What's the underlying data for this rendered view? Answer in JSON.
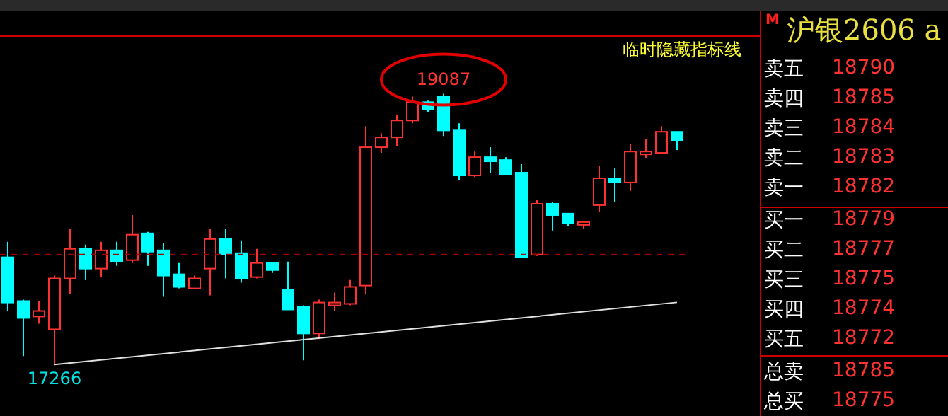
{
  "chart_data": {
    "type": "candlestick",
    "title": "沪银2606 a",
    "categories": [
      null,
      null,
      null,
      null,
      null,
      null,
      null,
      null,
      null,
      null,
      null,
      null,
      null,
      null,
      null,
      null,
      null,
      null,
      null,
      null,
      null,
      null,
      null,
      null,
      null,
      null,
      null,
      null,
      null,
      null,
      null,
      null,
      null,
      null,
      null,
      null,
      null,
      null,
      null,
      null,
      null,
      null,
      null,
      null
    ],
    "ohlc": [
      [
        17987,
        18091,
        17626,
        17683
      ],
      [
        17693,
        17702,
        17323,
        17579
      ],
      [
        17589,
        17693,
        17541,
        17626
      ],
      [
        17503,
        17864,
        17266,
        17845
      ],
      [
        17845,
        18177,
        17740,
        18044
      ],
      [
        18044,
        18072,
        17835,
        17911
      ],
      [
        17911,
        18091,
        17854,
        18034
      ],
      [
        18034,
        18091,
        17930,
        17958
      ],
      [
        17968,
        18271,
        17949,
        18139
      ],
      [
        18148,
        18158,
        17930,
        18025
      ],
      [
        18034,
        18082,
        17721,
        17864
      ],
      [
        17873,
        17949,
        17778,
        17788
      ],
      [
        17778,
        17864,
        17778,
        17845
      ],
      [
        17911,
        18177,
        17731,
        18110
      ],
      [
        18110,
        18177,
        17845,
        18006
      ],
      [
        18015,
        18101,
        17816,
        17845
      ],
      [
        17854,
        18044,
        17845,
        17949
      ],
      [
        17949,
        17949,
        17882,
        17901
      ],
      [
        17769,
        17958,
        17636,
        17636
      ],
      [
        17655,
        17664,
        17294,
        17475
      ],
      [
        17475,
        17702,
        17437,
        17683
      ],
      [
        17664,
        17750,
        17626,
        17683
      ],
      [
        17674,
        17835,
        17664,
        17788
      ],
      [
        17797,
        18869,
        17740,
        18727
      ],
      [
        18727,
        18821,
        18689,
        18793
      ],
      [
        18793,
        18945,
        18736,
        18907
      ],
      [
        18907,
        19068,
        18888,
        19030
      ],
      [
        19030,
        19040,
        18964,
        18983
      ],
      [
        19068,
        19087,
        18802,
        18840
      ],
      [
        18840,
        18888,
        18508,
        18537
      ],
      [
        18537,
        18698,
        18527,
        18660
      ],
      [
        18660,
        18727,
        18556,
        18632
      ],
      [
        18641,
        18660,
        18537,
        18546
      ],
      [
        18556,
        18613,
        17987,
        17987
      ],
      [
        18006,
        18376,
        17996,
        18347
      ],
      [
        18347,
        18357,
        18167,
        18271
      ],
      [
        18281,
        18281,
        18196,
        18214
      ],
      [
        18205,
        18233,
        18177,
        18224
      ],
      [
        18338,
        18603,
        18290,
        18518
      ],
      [
        18518,
        18584,
        18357,
        18490
      ],
      [
        18490,
        18746,
        18433,
        18698
      ],
      [
        18679,
        18784,
        18651,
        18698
      ],
      [
        18689,
        18869,
        18689,
        18831
      ],
      [
        18831,
        18831,
        18708,
        18774
      ]
    ],
    "colors": [
      "#00ffff",
      "#00ffff",
      "#ff3232",
      "#ff3232",
      "#ff3232",
      "#00ffff",
      "#ff3232",
      "#00ffff",
      "#ff3232",
      "#00ffff",
      "#00ffff",
      "#00ffff",
      "#ff3232",
      "#ff3232",
      "#00ffff",
      "#00ffff",
      "#ff3232",
      "#00ffff",
      "#00ffff",
      "#00ffff",
      "#ff3232",
      "#ff3232",
      "#ff3232",
      "#ff3232",
      "#ff3232",
      "#ff3232",
      "#ff3232",
      "#00ffff",
      "#00ffff",
      "#00ffff",
      "#ff3232",
      "#00ffff",
      "#00ffff",
      "#00ffff",
      "#ff3232",
      "#00ffff",
      "#00ffff",
      "#ff3232",
      "#ff3232",
      "#00ffff",
      "#ff3232",
      "#ff3232",
      "#ff3232",
      "#00ffff"
    ],
    "series": [
      {
        "type": "line",
        "color": "#e0e0e0",
        "values": [
          null,
          null,
          null,
          17266,
          null,
          null,
          null,
          null,
          null,
          null,
          null,
          null,
          null,
          null,
          null,
          null,
          null,
          null,
          null,
          null,
          null,
          null,
          null,
          null,
          null,
          null,
          null,
          null,
          null,
          null,
          null,
          null,
          null,
          null,
          null,
          null,
          null,
          null,
          null,
          null,
          null,
          null,
          null,
          17684
        ]
      }
    ],
    "ref_lines": [
      {
        "axis": "y",
        "value": 18006,
        "color": "#a00000",
        "line_style": "dashed"
      }
    ],
    "annotations": [
      {
        "text": "19087",
        "y": 19087
      },
      {
        "text": "17266",
        "y": 17266
      },
      "临时隐藏指标线",
      "M",
      "卖五",
      "18790",
      "卖四",
      "18785",
      "卖三",
      "18784",
      "卖二",
      "18783",
      "卖一",
      "18782",
      "买一",
      "18779",
      "买二",
      "18777",
      "买三",
      "18775",
      "买四",
      "18774",
      "买五",
      "18772",
      "总卖",
      "18785",
      "总买",
      "18775"
    ],
    "tick_labels": false
  }
}
